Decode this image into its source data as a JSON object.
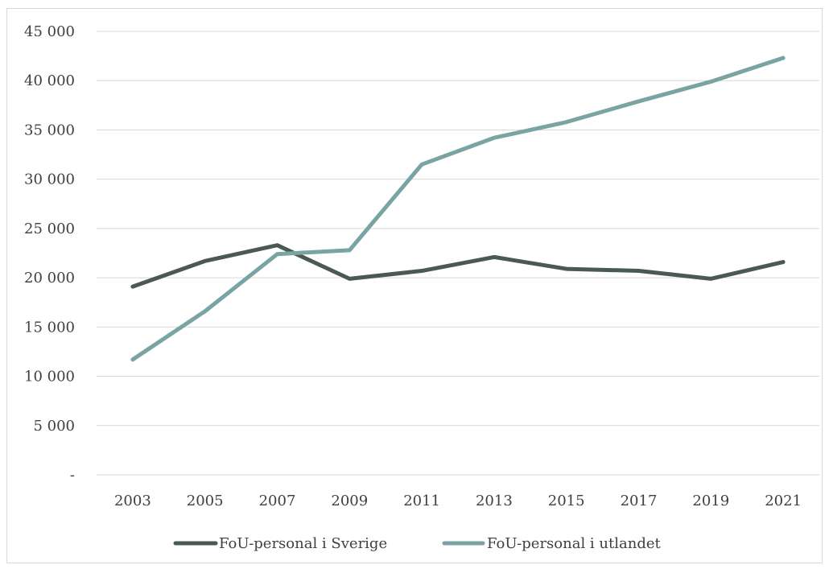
{
  "chart_data": {
    "type": "line",
    "title": "",
    "xlabel": "",
    "ylabel": "",
    "categories": [
      "2003",
      "2005",
      "2007",
      "2009",
      "2011",
      "2013",
      "2015",
      "2017",
      "2019",
      "2021"
    ],
    "ylim": [
      0,
      45000
    ],
    "yticks": [
      {
        "value": 0,
        "label": "-"
      },
      {
        "value": 5000,
        "label": "5 000"
      },
      {
        "value": 10000,
        "label": "10 000"
      },
      {
        "value": 15000,
        "label": "15 000"
      },
      {
        "value": 20000,
        "label": "20 000"
      },
      {
        "value": 25000,
        "label": "25 000"
      },
      {
        "value": 30000,
        "label": "30 000"
      },
      {
        "value": 35000,
        "label": "35 000"
      },
      {
        "value": 40000,
        "label": "40 000"
      },
      {
        "value": 45000,
        "label": "45 000"
      }
    ],
    "grid": true,
    "legend_position": "bottom",
    "series": [
      {
        "name": "FoU-personal i Sverige",
        "color": "#4a5a53",
        "values": [
          19100,
          21700,
          23300,
          19900,
          20700,
          22100,
          20900,
          20700,
          19900,
          21600
        ]
      },
      {
        "name": "FoU-personal i utlandet",
        "color": "#7aa3a3",
        "values": [
          11700,
          16600,
          22400,
          22800,
          31500,
          34200,
          35800,
          37900,
          39900,
          42300
        ]
      }
    ]
  }
}
